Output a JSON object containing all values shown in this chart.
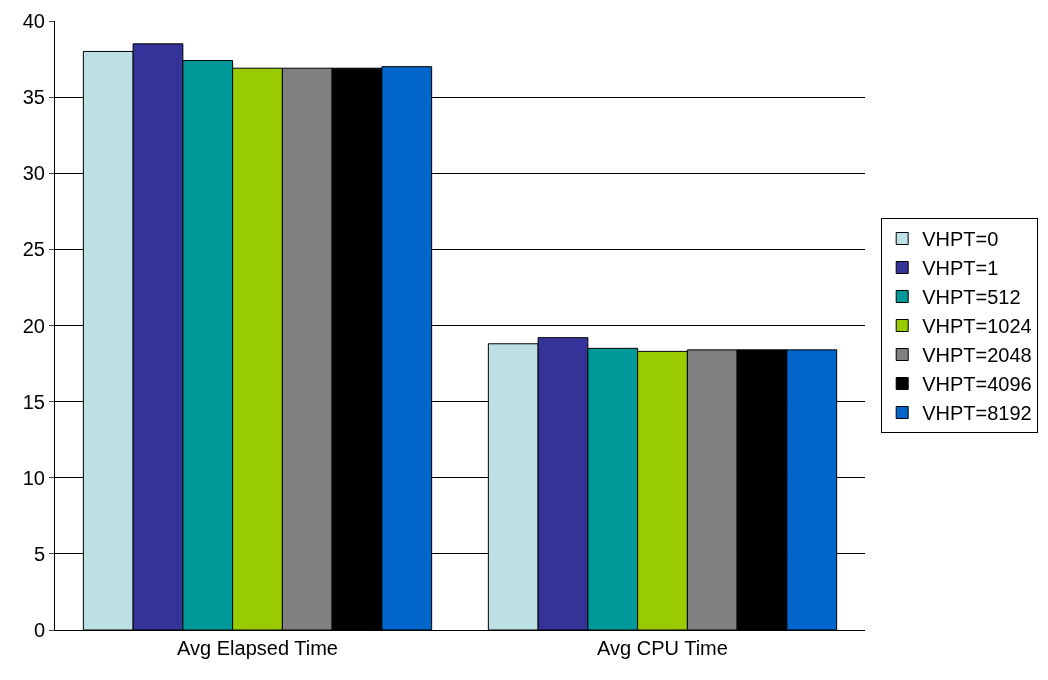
{
  "chart_data": {
    "type": "bar",
    "categories": [
      "Avg Elapsed Time",
      "Avg CPU Time"
    ],
    "series": [
      {
        "name": "VHPT=0",
        "color": "#bde0e4",
        "values": [
          38.0,
          18.8
        ]
      },
      {
        "name": "VHPT=1",
        "color": "#333399",
        "values": [
          38.5,
          19.2
        ]
      },
      {
        "name": "VHPT=512",
        "color": "#009999",
        "values": [
          37.4,
          18.5
        ]
      },
      {
        "name": "VHPT=1024",
        "color": "#99cc00",
        "values": [
          36.9,
          18.3
        ]
      },
      {
        "name": "VHPT=2048",
        "color": "#808080",
        "values": [
          36.9,
          18.4
        ]
      },
      {
        "name": "VHPT=4096",
        "color": "#000000",
        "values": [
          36.9,
          18.4
        ]
      },
      {
        "name": "VHPT=8192",
        "color": "#0066cc",
        "values": [
          37.0,
          18.4
        ]
      }
    ],
    "ylim": [
      0,
      40
    ],
    "yticks": [
      0,
      5,
      10,
      15,
      20,
      25,
      30,
      35,
      40
    ],
    "grid": "y",
    "legend": "right"
  }
}
